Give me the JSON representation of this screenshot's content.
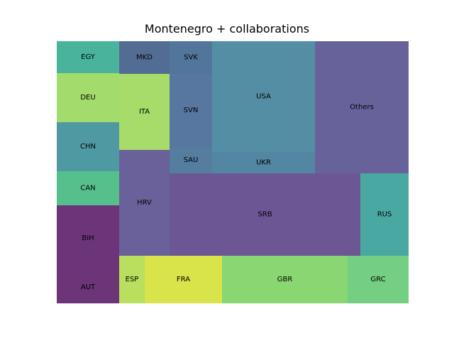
{
  "chart_data": {
    "type": "treemap",
    "title": "Montenegro + collaborations",
    "cells": [
      {
        "label": "AUT",
        "value": 44,
        "color": "#6b3578"
      },
      {
        "label": "BIH",
        "value": 42,
        "color": "#6c357a"
      },
      {
        "label": "CAN",
        "value": 30,
        "color": "#56c08d"
      },
      {
        "label": "CHN",
        "value": 43,
        "color": "#4f9aa2"
      },
      {
        "label": "DEU",
        "value": 43,
        "color": "#a3dc6c"
      },
      {
        "label": "EGY",
        "value": 28,
        "color": "#49b49b"
      },
      {
        "label": "MKD",
        "value": 25,
        "color": "#536c94"
      },
      {
        "label": "SVK",
        "value": 26,
        "color": "#52769b"
      },
      {
        "label": "ITA",
        "value": 43,
        "color": "#a8dc6a"
      },
      {
        "label": "HRV",
        "value": 62,
        "color": "#6a619a"
      },
      {
        "label": "SVN",
        "value": 42,
        "color": "#5777a1"
      },
      {
        "label": "SAU",
        "value": 14,
        "color": "#557d9e"
      },
      {
        "label": "USA",
        "value": 129,
        "color": "#548ea4"
      },
      {
        "label": "UKR",
        "value": 24,
        "color": "#5386a2"
      },
      {
        "label": "Others",
        "value": 109,
        "color": "#68629b"
      },
      {
        "label": "SRB",
        "value": 173,
        "color": "#6c5694"
      },
      {
        "label": "RUS",
        "value": 44,
        "color": "#4aa8a3"
      },
      {
        "label": "ESP",
        "value": 14,
        "color": "#bade5d"
      },
      {
        "label": "FRA",
        "value": 45,
        "color": "#d9e34a"
      },
      {
        "label": "GBR",
        "value": 72,
        "color": "#8ad672"
      },
      {
        "label": "GRC",
        "value": 35,
        "color": "#74cf82"
      }
    ]
  }
}
